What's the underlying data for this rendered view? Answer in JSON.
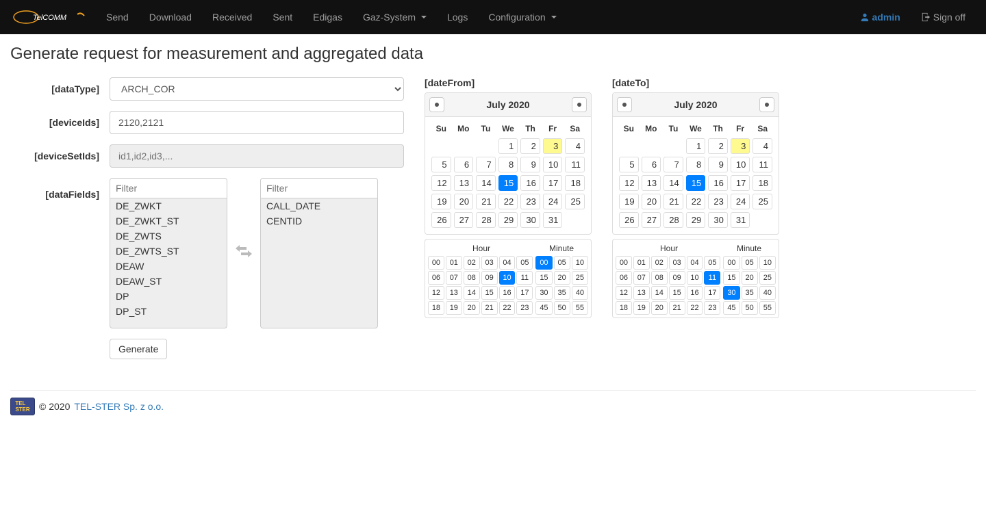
{
  "nav": {
    "items": [
      "Send",
      "Download",
      "Received",
      "Sent",
      "Edigas",
      "Gaz-System",
      "Logs",
      "Configuration"
    ],
    "dropdown_indices": [
      5,
      7
    ],
    "user": "admin",
    "signoff": "Sign off"
  },
  "page_title": "Generate request for measurement and aggregated data",
  "labels": {
    "dataType": "[dataType]",
    "deviceIds": "[deviceIds]",
    "deviceSetIds": "[deviceSetIds]",
    "dataFields": "[dataFields]",
    "dateFrom": "[dateFrom]",
    "dateTo": "[dateTo]"
  },
  "form": {
    "dataType_value": "ARCH_COR",
    "deviceIds_value": "2120,2121",
    "deviceSetIds_placeholder": "id1,id2,id3,...",
    "filter_placeholder": "Filter",
    "left_list": [
      "DE_ZWKT",
      "DE_ZWKT_ST",
      "DE_ZWTS",
      "DE_ZWTS_ST",
      "DEAW",
      "DEAW_ST",
      "DP",
      "DP_ST"
    ],
    "right_list": [
      "CALL_DATE",
      "CENTID"
    ],
    "generate": "Generate"
  },
  "calendar": {
    "month_title": "July 2020",
    "dow": [
      "Su",
      "Mo",
      "Tu",
      "We",
      "Th",
      "Fr",
      "Sa"
    ],
    "first_weekday": 3,
    "days_in_month": 31,
    "today": 3,
    "selected_from": 15,
    "selected_to": 15,
    "hour_label": "Hour",
    "minute_label": "Minute",
    "hours": [
      "00",
      "01",
      "02",
      "03",
      "04",
      "05",
      "06",
      "07",
      "08",
      "09",
      "10",
      "11",
      "12",
      "13",
      "14",
      "15",
      "16",
      "17",
      "18",
      "19",
      "20",
      "21",
      "22",
      "23"
    ],
    "minutes": [
      "00",
      "05",
      "10",
      "15",
      "20",
      "25",
      "30",
      "35",
      "40",
      "45",
      "50",
      "55"
    ],
    "from_hour_sel": "10",
    "from_min_sel": "00",
    "to_hour_sel": "11",
    "to_min_sel": "30"
  },
  "footer": {
    "copyright": "© 2020 ",
    "company": "TEL-STER Sp. z o.o."
  },
  "colors": {
    "primary": "#007fff",
    "today": "#fffa90",
    "link": "#337ab7"
  }
}
